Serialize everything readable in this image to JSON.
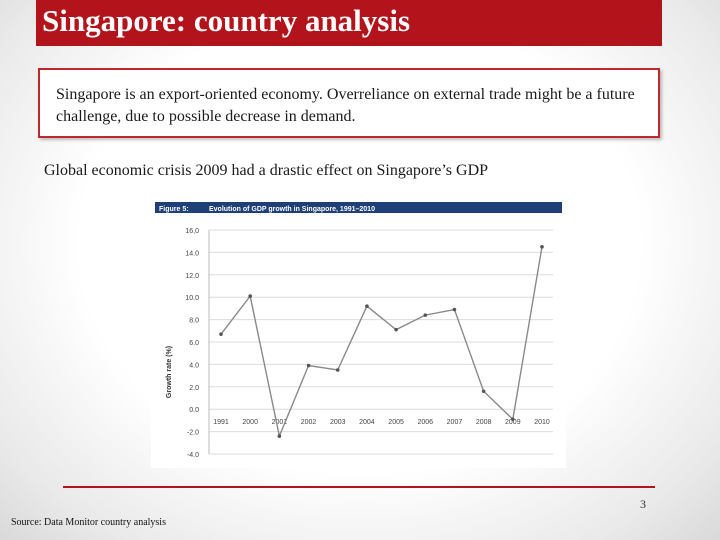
{
  "slide": {
    "title": "Singapore: country analysis",
    "callout": "Singapore is an export-oriented economy. Overreliance  on external trade might be a future challenge, due to possible decrease in demand.",
    "subtitle": "Global economic crisis 2009 had a drastic effect on Singapore’s GDP",
    "page_number": "3",
    "source": "Source: Data Monitor country analysis"
  },
  "colors": {
    "title_bar": "#b3141b",
    "callout_border": "#c0282d",
    "chart_header": "#1f3f77",
    "series": "#8a8a8a",
    "marker": "#555555"
  },
  "chart_data": {
    "type": "line",
    "figure_label": "Figure 5:",
    "title": "Evolution of GDP growth in Singapore, 1991–2010",
    "xlabel": "",
    "ylabel": "Growth rate (%)",
    "ylim": [
      -4,
      16
    ],
    "y_ticks": [
      "16,0",
      "14.0",
      "12.0",
      "10.0",
      "8.0",
      "6.0",
      "4.0",
      "2.0",
      "0.0",
      "-2.0",
      "-4.0"
    ],
    "y_tick_values": [
      16,
      14,
      12,
      10,
      8,
      6,
      4,
      2,
      0,
      -2,
      -4
    ],
    "categories": [
      "1991",
      "2000",
      "2001",
      "2002",
      "2003",
      "2004",
      "2005",
      "2006",
      "2007",
      "2008",
      "2009",
      "2010"
    ],
    "values": [
      6.7,
      10.1,
      -2.4,
      3.9,
      3.5,
      9.2,
      7.1,
      8.4,
      8.9,
      1.6,
      -0.9,
      14.5
    ],
    "grid": "horizontal",
    "legend": "none"
  }
}
